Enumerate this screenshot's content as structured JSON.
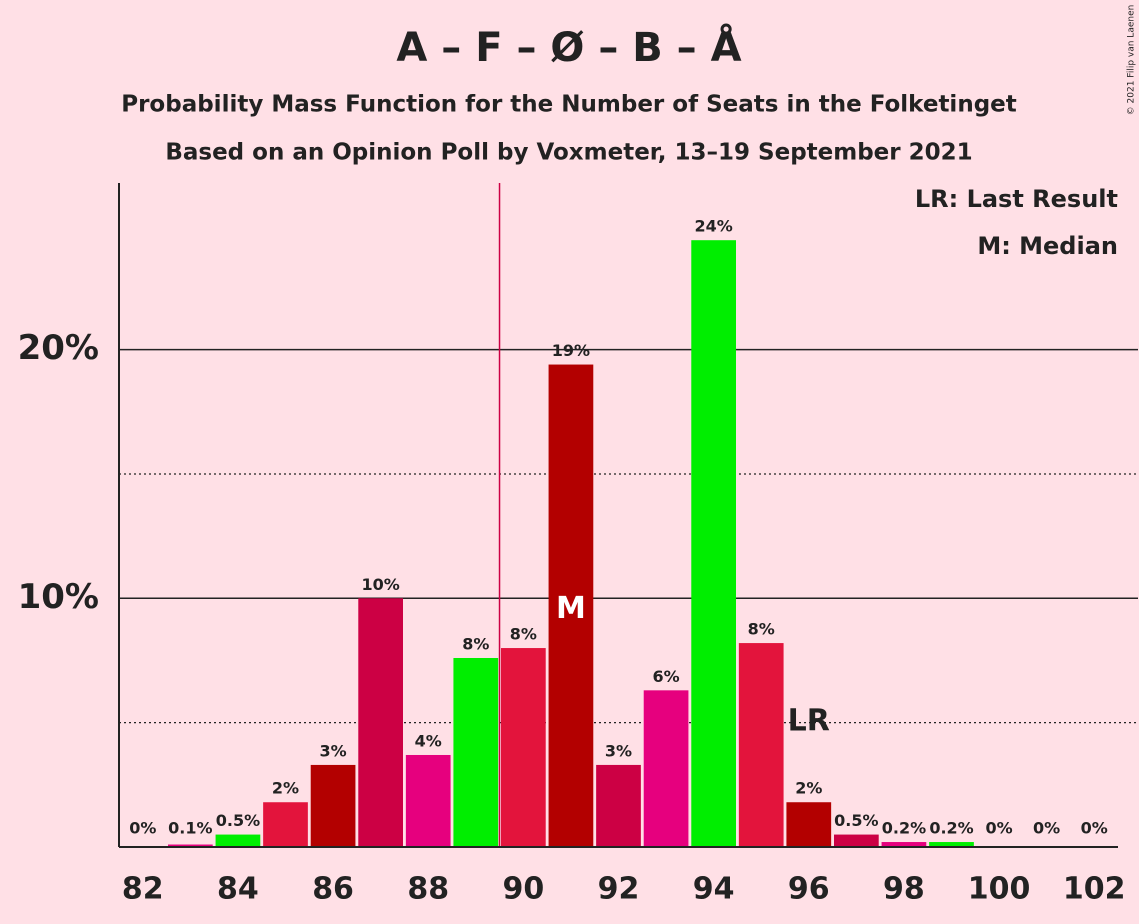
{
  "chart_data": {
    "type": "bar",
    "title": "A – F – Ø – B – Å",
    "subtitle": "Probability Mass Function for the Number of Seats in the Folketinget",
    "subtitle2": "Based on an Opinion Poll by Voxmeter, 13–19 September 2021",
    "copyright": "© 2021 Filip van Laenen",
    "x": [
      82,
      83,
      84,
      85,
      86,
      87,
      88,
      89,
      90,
      91,
      92,
      93,
      94,
      95,
      96,
      97,
      98,
      99,
      100,
      101,
      102
    ],
    "values": [
      0,
      0.1,
      0.5,
      1.8,
      3.3,
      10.0,
      3.7,
      7.6,
      8.0,
      19.4,
      3.3,
      6.3,
      24.4,
      8.2,
      1.8,
      0.5,
      0.2,
      0.2,
      0,
      0,
      0
    ],
    "value_labels": [
      "0%",
      "0.1%",
      "0.5%",
      "2%",
      "3%",
      "10%",
      "4%",
      "8%",
      "8%",
      "19%",
      "3%",
      "6%",
      "24%",
      "8%",
      "2%",
      "0.5%",
      "0.2%",
      "0.2%",
      "0%",
      "0%",
      "0%"
    ],
    "colors": [
      "#cc0044",
      "#e6007e",
      "#00ee00",
      "#e3143c",
      "#b30000",
      "#cc0044",
      "#e6007e",
      "#00ee00",
      "#e3143c",
      "#b30000",
      "#cc0044",
      "#e6007e",
      "#00ee00",
      "#e3143c",
      "#b30000",
      "#cc0044",
      "#e6007e",
      "#00ee00",
      "#e3143c",
      "#b30000",
      "#cc0044"
    ],
    "xlim": [
      81.5,
      102.5
    ],
    "xticks": [
      82,
      84,
      86,
      88,
      90,
      92,
      94,
      96,
      98,
      100,
      102
    ],
    "ylim": [
      0,
      26.7
    ],
    "yticks": [
      {
        "value": 10,
        "label": "10%"
      },
      {
        "value": 20,
        "label": "20%"
      }
    ],
    "minor_yticks": [
      5,
      15
    ],
    "grid": true,
    "median": 91,
    "median_label": "M",
    "last_result": 96,
    "last_result_label": "LR",
    "legend": [
      "LR: Last Result",
      "M: Median"
    ],
    "legend_position": "upper right"
  }
}
